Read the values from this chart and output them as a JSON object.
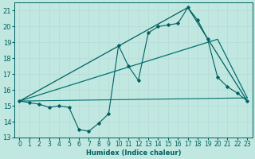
{
  "xlabel": "Humidex (Indice chaleur)",
  "bg_color": "#c0e8e0",
  "grid_color": "#d8f0ec",
  "line_color_dark": "#006060",
  "line_color_mid": "#007070",
  "xlim": [
    -0.5,
    23.5
  ],
  "ylim": [
    13,
    21.5
  ],
  "yticks": [
    13,
    14,
    15,
    16,
    17,
    18,
    19,
    20,
    21
  ],
  "xticks": [
    0,
    1,
    2,
    3,
    4,
    5,
    6,
    7,
    8,
    9,
    10,
    11,
    12,
    13,
    14,
    15,
    16,
    17,
    18,
    19,
    20,
    21,
    22,
    23
  ],
  "series1_x": [
    0,
    1,
    2,
    3,
    4,
    5,
    6,
    7,
    8,
    9,
    10,
    11,
    12,
    13,
    14,
    15,
    16,
    17,
    18,
    19,
    20,
    21,
    22,
    23
  ],
  "series1_y": [
    15.3,
    15.2,
    15.1,
    14.9,
    15.0,
    14.9,
    13.5,
    13.4,
    13.9,
    14.5,
    18.8,
    17.5,
    16.6,
    19.6,
    20.0,
    20.1,
    20.2,
    21.2,
    20.4,
    19.2,
    16.8,
    16.2,
    15.8,
    15.3
  ],
  "series2_x": [
    0,
    23
  ],
  "series2_y": [
    15.3,
    15.5
  ],
  "series3_x": [
    0,
    17,
    23
  ],
  "series3_y": [
    15.3,
    21.2,
    15.3
  ],
  "series4_x": [
    0,
    20,
    23
  ],
  "series4_y": [
    15.3,
    19.2,
    15.5
  ]
}
